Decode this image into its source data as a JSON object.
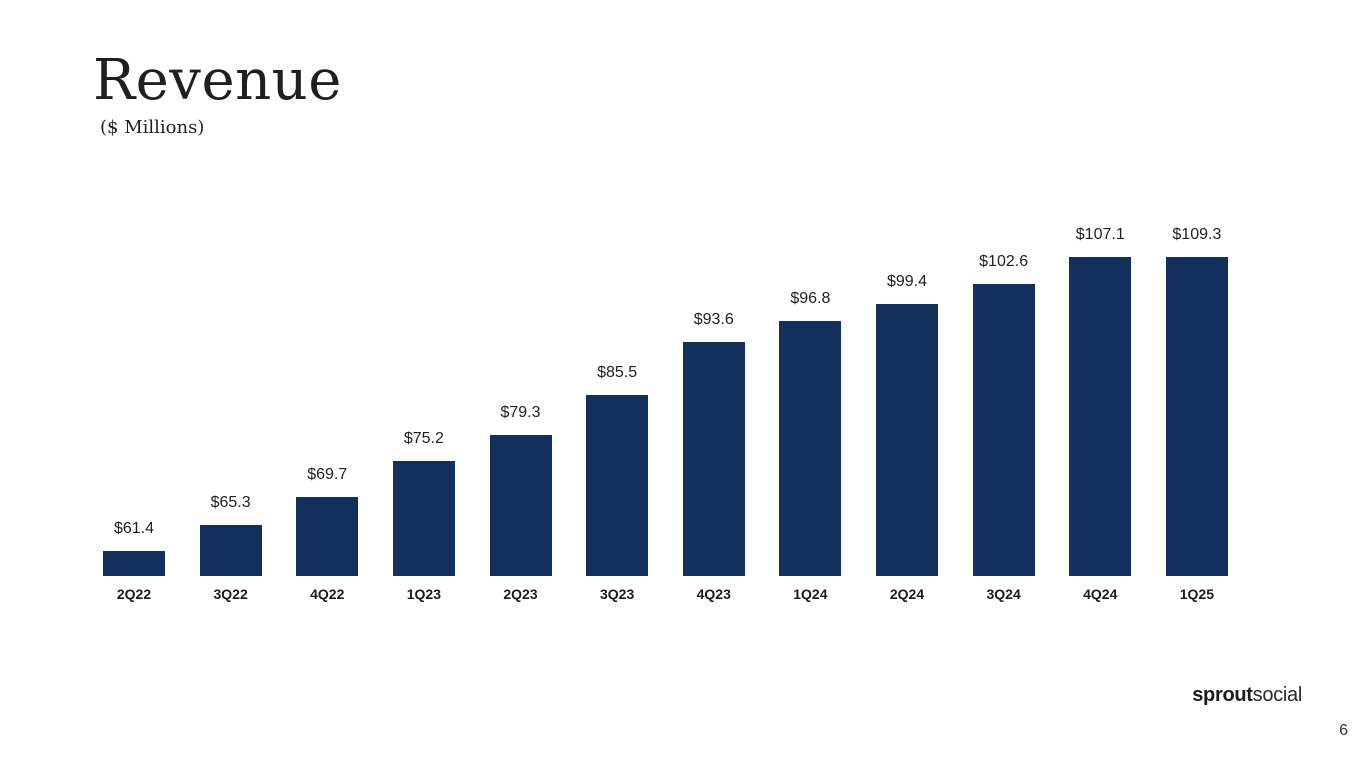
{
  "slide": {
    "title": "Revenue",
    "subtitle": "($ Millions)",
    "page_number": "6",
    "logo": {
      "bold": "sprout",
      "light": "social"
    }
  },
  "colors": {
    "bar": "#13305C",
    "text": "#212121",
    "background": "#ffffff"
  },
  "chart_data": {
    "type": "bar",
    "title": "Revenue",
    "subtitle": "($ Millions)",
    "categories": [
      "2Q22",
      "3Q22",
      "4Q22",
      "1Q23",
      "2Q23",
      "3Q23",
      "4Q23",
      "1Q24",
      "2Q24",
      "3Q24",
      "4Q24",
      "1Q25"
    ],
    "values": [
      61.4,
      65.3,
      69.7,
      75.2,
      79.3,
      85.5,
      93.6,
      96.8,
      99.4,
      102.6,
      107.1,
      109.3
    ],
    "value_labels": [
      "$61.4",
      "$65.3",
      "$69.7",
      "$75.2",
      "$79.3",
      "$85.5",
      "$93.6",
      "$96.8",
      "$99.4",
      "$102.6",
      "$107.1",
      "$109.3"
    ],
    "value_prefix": "$",
    "xlabel": "",
    "ylabel": "$ Millions",
    "ylim": [
      57.5,
      111.5
    ],
    "axis_starts_at_zero": false,
    "grid": false,
    "legend": "none",
    "bar_color": "#13305C"
  }
}
